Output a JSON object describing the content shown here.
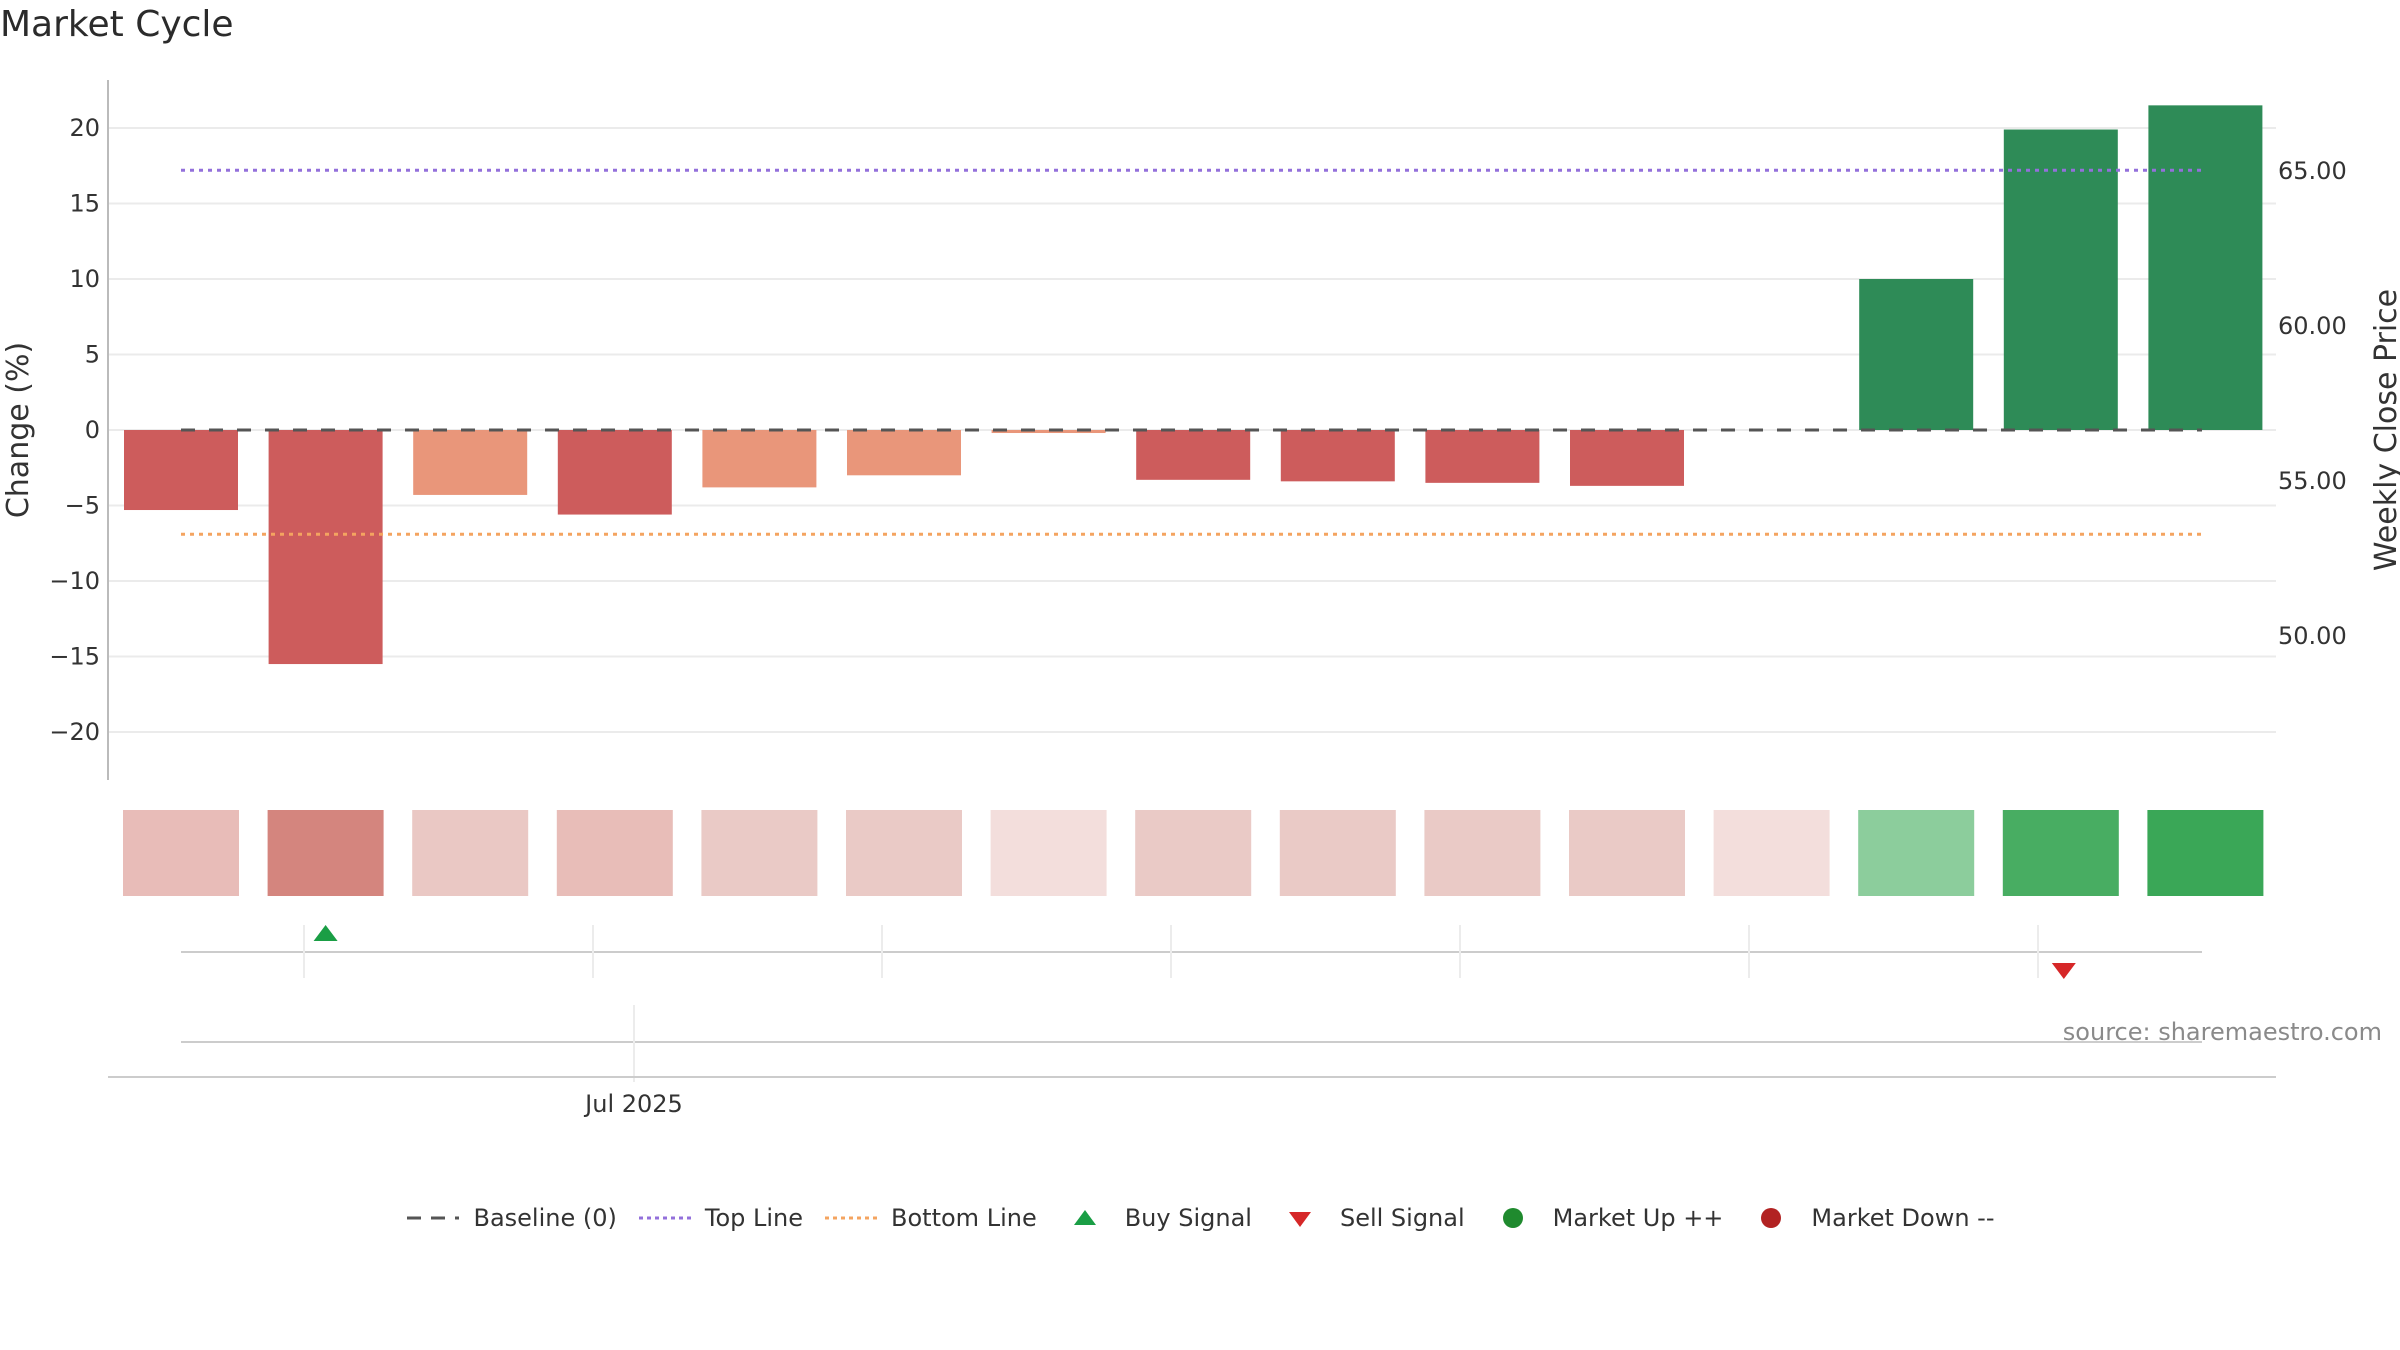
{
  "title": "Market Cycle",
  "colors": {
    "neg_strong": "#cd5c5c",
    "neg_mild": "#e9967a",
    "pos": "#2e8b57",
    "top_line": "#9370db",
    "bottom_line": "#f4a460",
    "baseline": "#555555",
    "buy": "#1a9e45",
    "sell": "#d62728",
    "market_up": "#1f8a2e",
    "market_down": "#b22222"
  },
  "source": "source: sharemaestro.com",
  "legend": [
    {
      "label": "Baseline (0)",
      "symbol": "dash",
      "color": "#555555"
    },
    {
      "label": "Top Line",
      "symbol": "dot-line",
      "color": "#9370db"
    },
    {
      "label": "Bottom Line",
      "symbol": "dot-line",
      "color": "#f4a460"
    },
    {
      "label": "Buy Signal",
      "symbol": "triangle-up",
      "color": "#1a9e45"
    },
    {
      "label": "Sell Signal",
      "symbol": "triangle-down",
      "color": "#d62728"
    },
    {
      "label": "Market Up ++",
      "symbol": "circle",
      "color": "#1f8a2e"
    },
    {
      "label": "Market Down --",
      "symbol": "circle",
      "color": "#b22222"
    }
  ],
  "chart_data": {
    "type": "bar",
    "title": "Market Cycle",
    "ylabel": "Change (%)",
    "y2label": "Weekly Close Price",
    "ylim": [
      -23.5,
      23.3
    ],
    "yticks": [
      20,
      15,
      10,
      5,
      0,
      -5,
      -10,
      -15,
      -20
    ],
    "ytick_labels": [
      "20",
      "15",
      "10",
      "5",
      "0",
      "−5",
      "−10",
      "−15",
      "−20"
    ],
    "y2ticks": [
      65,
      60,
      55,
      50
    ],
    "y2tick_labels": [
      "65.00",
      "60.00",
      "55.00",
      "50.00"
    ],
    "x_tick_label": "Jul 2025",
    "grid": true,
    "legend_position": "bottom",
    "values": [
      -5.3,
      -15.5,
      -4.3,
      -5.6,
      -3.8,
      -3.0,
      -0.2,
      -3.3,
      -3.4,
      -3.5,
      -3.7,
      0,
      10.0,
      19.9,
      21.5
    ],
    "bar_colors": [
      "#cd5c5c",
      "#cd5c5c",
      "#e9967a",
      "#cd5c5c",
      "#e9967a",
      "#e9967a",
      "#e9967a",
      "#cd5c5c",
      "#cd5c5c",
      "#cd5c5c",
      "#cd5c5c",
      "#cd5c5c",
      "#2e8b57",
      "#2e8b57",
      "#2e8b57"
    ],
    "heat_colors": [
      "#e8bcb8",
      "#d4857e",
      "#eac8c4",
      "#e8bdb8",
      "#eacac6",
      "#eacac6",
      "#f3dedc",
      "#eacac6",
      "#eacac6",
      "#eacac6",
      "#eacac6",
      "#f3dedc",
      "#8ccd9c",
      "#48ad62",
      "#3aa757"
    ],
    "top_line": 17.2,
    "bottom_line": -6.9,
    "baseline": 0,
    "buy_signals": [
      1
    ],
    "sell_signals": [
      13
    ]
  }
}
